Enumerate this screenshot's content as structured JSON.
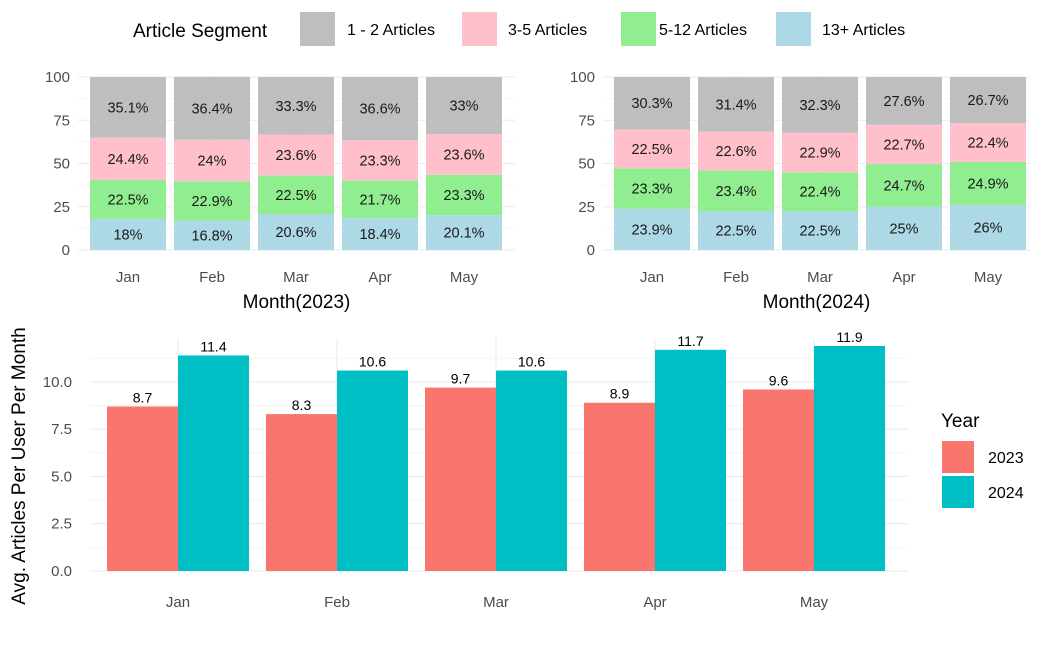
{
  "legend_top": {
    "title": "Article Segment",
    "items": [
      {
        "label": "1 - 2 Articles",
        "color": "#bebebe"
      },
      {
        "label": "3-5 Articles",
        "color": "#ffc0cb"
      },
      {
        "label": "5-12 Articles",
        "color": "#90ee90"
      },
      {
        "label": "13+ Articles",
        "color": "#add8e6"
      }
    ]
  },
  "legend_year": {
    "title": "Year",
    "items": [
      {
        "label": "2023",
        "color": "#f8766d"
      },
      {
        "label": "2024",
        "color": "#00bfc4"
      }
    ]
  },
  "chart_data": [
    {
      "type": "bar",
      "stacked": true,
      "title": "",
      "xlabel": "Month(2023)",
      "ylabel": "",
      "ylim": [
        0,
        100
      ],
      "yticks": [
        0,
        25,
        50,
        75,
        100
      ],
      "categories": [
        "Jan",
        "Feb",
        "Mar",
        "Apr",
        "May"
      ],
      "series": [
        {
          "name": "13+ Articles",
          "color": "#add8e6",
          "values": [
            18,
            16.8,
            20.6,
            18.4,
            20.1
          ],
          "labels": [
            "18%",
            "16.8%",
            "20.6%",
            "18.4%",
            "20.1%"
          ]
        },
        {
          "name": "5-12 Articles",
          "color": "#90ee90",
          "values": [
            22.5,
            22.9,
            22.5,
            21.7,
            23.3
          ],
          "labels": [
            "22.5%",
            "22.9%",
            "22.5%",
            "21.7%",
            "23.3%"
          ]
        },
        {
          "name": "3-5 Articles",
          "color": "#ffc0cb",
          "values": [
            24.4,
            24,
            23.6,
            23.3,
            23.6
          ],
          "labels": [
            "24.4%",
            "24%",
            "23.6%",
            "23.3%",
            "23.6%"
          ]
        },
        {
          "name": "1 - 2 Articles",
          "color": "#bebebe",
          "values": [
            35.1,
            36.4,
            33.3,
            36.6,
            33
          ],
          "labels": [
            "35.1%",
            "36.4%",
            "33.3%",
            "36.6%",
            "33%"
          ]
        }
      ]
    },
    {
      "type": "bar",
      "stacked": true,
      "title": "",
      "xlabel": "Month(2024)",
      "ylabel": "",
      "ylim": [
        0,
        100
      ],
      "yticks": [
        0,
        25,
        50,
        75,
        100
      ],
      "categories": [
        "Jan",
        "Feb",
        "Mar",
        "Apr",
        "May"
      ],
      "series": [
        {
          "name": "13+ Articles",
          "color": "#add8e6",
          "values": [
            23.9,
            22.5,
            22.5,
            25,
            26
          ],
          "labels": [
            "23.9%",
            "22.5%",
            "22.5%",
            "25%",
            "26%"
          ]
        },
        {
          "name": "5-12 Articles",
          "color": "#90ee90",
          "values": [
            23.3,
            23.4,
            22.4,
            24.7,
            24.9
          ],
          "labels": [
            "23.3%",
            "23.4%",
            "22.4%",
            "24.7%",
            "24.9%"
          ]
        },
        {
          "name": "3-5 Articles",
          "color": "#ffc0cb",
          "values": [
            22.5,
            22.6,
            22.9,
            22.7,
            22.4
          ],
          "labels": [
            "22.5%",
            "22.6%",
            "22.9%",
            "22.7%",
            "22.4%"
          ]
        },
        {
          "name": "1 - 2 Articles",
          "color": "#bebebe",
          "values": [
            30.3,
            31.4,
            32.3,
            27.6,
            26.7
          ],
          "labels": [
            "30.3%",
            "31.4%",
            "32.3%",
            "27.6%",
            "26.7%"
          ]
        }
      ]
    },
    {
      "type": "bar",
      "stacked": false,
      "title": "",
      "xlabel": "",
      "ylabel": "Avg. Articles Per User Per Month",
      "ylim": [
        0,
        11.9
      ],
      "yticks": [
        0,
        2.5,
        5,
        7.5,
        10
      ],
      "ytick_labels": [
        "0.0",
        "2.5",
        "5.0",
        "7.5",
        "10.0"
      ],
      "categories": [
        "Jan",
        "Feb",
        "Mar",
        "Apr",
        "May"
      ],
      "series": [
        {
          "name": "2023",
          "color": "#f8766d",
          "values": [
            8.7,
            8.3,
            9.7,
            8.9,
            9.6
          ],
          "labels": [
            "8.7",
            "8.3",
            "9.7",
            "8.9",
            "9.6"
          ]
        },
        {
          "name": "2024",
          "color": "#00bfc4",
          "values": [
            11.4,
            10.6,
            10.6,
            11.7,
            11.9
          ],
          "labels": [
            "11.4",
            "10.6",
            "10.6",
            "11.7",
            "11.9"
          ]
        }
      ]
    }
  ]
}
